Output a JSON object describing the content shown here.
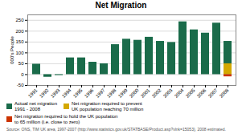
{
  "chart_data": {
    "type": "bar",
    "title": "Net Migration",
    "ylabel": "000's People",
    "categories": [
      "1991",
      "1992",
      "1993",
      "1994",
      "1995",
      "1996",
      "1997",
      "1998",
      "1999",
      "2000",
      "2001",
      "2002",
      "2003",
      "2004",
      "2005",
      "2006",
      "2007",
      "2008"
    ],
    "series": [
      {
        "name": "Actual net migration\n1991 - 2008",
        "color": "#1a6b4a",
        "values": [
          48,
          -12,
          -4,
          77,
          77,
          57,
          50,
          138,
          163,
          158,
          172,
          153,
          148,
          243,
          206,
          191,
          237,
          153
        ]
      },
      {
        "name": "Net migration required to prevent\nUK population reaching 70 million",
        "color": "#d4a800",
        "values": [
          null,
          null,
          null,
          null,
          null,
          null,
          null,
          null,
          null,
          null,
          null,
          null,
          null,
          null,
          null,
          null,
          null,
          50
        ]
      },
      {
        "name": "Net migration required to hold the UK population\nto 65 million (i.e. close to zero)",
        "color": "#cc3300",
        "values": [
          null,
          null,
          null,
          null,
          null,
          null,
          null,
          null,
          null,
          null,
          null,
          null,
          null,
          null,
          null,
          null,
          null,
          -10
        ]
      }
    ],
    "stacked": false,
    "ylim": [
      -50,
      275
    ],
    "yticks": [
      -50,
      0,
      50,
      100,
      150,
      200,
      250
    ],
    "grid": true,
    "legend": "bottom",
    "annotations": [
      "Source: ONS, TIM UK area, 1997-2007 (http://www.statistics.gov.uk/STATBASE/Product.asp?vlnk=15053), 2008 estimated."
    ]
  }
}
